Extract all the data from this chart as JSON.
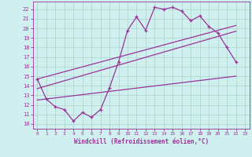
{
  "xlabel": "Windchill (Refroidissement éolien,°C)",
  "xlim": [
    -0.5,
    23.5
  ],
  "ylim": [
    9.5,
    22.8
  ],
  "xticks": [
    0,
    1,
    2,
    3,
    4,
    5,
    6,
    7,
    8,
    9,
    10,
    11,
    12,
    13,
    14,
    15,
    16,
    17,
    18,
    19,
    20,
    21,
    22,
    23
  ],
  "yticks": [
    10,
    11,
    12,
    13,
    14,
    15,
    16,
    17,
    18,
    19,
    20,
    21,
    22
  ],
  "bg_color": "#d0f0f0",
  "line_color": "#993399",
  "grid_color": "#b0d8d0",
  "line1_x": [
    0,
    1,
    2,
    3,
    4,
    5,
    6,
    7,
    8,
    9,
    10,
    11,
    12,
    13,
    14,
    15,
    16,
    17,
    18,
    19,
    20,
    21,
    22
  ],
  "line1_y": [
    14.7,
    12.6,
    11.8,
    11.5,
    10.3,
    11.2,
    10.7,
    11.5,
    13.8,
    16.5,
    19.8,
    21.2,
    19.8,
    22.2,
    22.0,
    22.2,
    21.8,
    20.8,
    21.3,
    20.2,
    19.5,
    18.0,
    16.5
  ],
  "line2_x": [
    0,
    22
  ],
  "line2_y": [
    12.5,
    15.0
  ],
  "line3_x": [
    0,
    22
  ],
  "line3_y": [
    13.7,
    19.7
  ],
  "line4_x": [
    0,
    22
  ],
  "line4_y": [
    14.7,
    20.3
  ]
}
